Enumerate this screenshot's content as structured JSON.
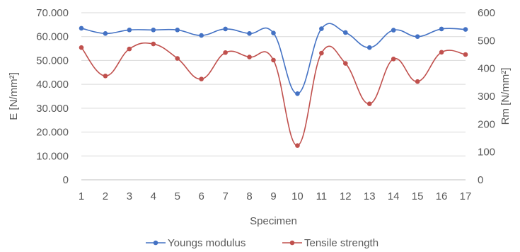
{
  "chart_data": {
    "type": "line",
    "smooth": true,
    "xlabel": "Specimen",
    "ylabel_left": "E [N/mm²]",
    "ylabel_right": "Rm [N/mm²]",
    "x": [
      1,
      2,
      3,
      4,
      5,
      6,
      7,
      8,
      9,
      10,
      11,
      12,
      13,
      14,
      15,
      16,
      17
    ],
    "x_tick_labels": [
      "1",
      "2",
      "3",
      "4",
      "5",
      "6",
      "7",
      "8",
      "9",
      "10",
      "11",
      "12",
      "13",
      "14",
      "15",
      "16",
      "17"
    ],
    "y_left": {
      "lim": [
        0,
        70000
      ],
      "ticks": [
        0,
        10000,
        20000,
        30000,
        40000,
        50000,
        60000,
        70000
      ],
      "tick_labels": [
        "0",
        "10.000",
        "20.000",
        "30.000",
        "40.000",
        "50.000",
        "60.000",
        "70.000"
      ]
    },
    "y_right": {
      "lim": [
        0,
        600
      ],
      "ticks": [
        0,
        100,
        200,
        300,
        400,
        500,
        600
      ],
      "tick_labels": [
        "0",
        "100",
        "200",
        "300",
        "400",
        "500",
        "600"
      ]
    },
    "gridlines": "horizontal",
    "legend_position": "bottom",
    "series": [
      {
        "name": "Youngs modulus",
        "axis": "left",
        "color": "#4472C4",
        "values": [
          63500,
          61300,
          62800,
          62800,
          62800,
          60500,
          63200,
          61300,
          61500,
          36100,
          63300,
          61700,
          55400,
          62700,
          60000,
          63200,
          63000
        ]
      },
      {
        "name": "Tensile strength",
        "axis": "right",
        "color": "#C0504D",
        "values": [
          475,
          373,
          470,
          488,
          436,
          362,
          457,
          441,
          430,
          123,
          455,
          418,
          273,
          434,
          353,
          458,
          450
        ]
      }
    ]
  }
}
